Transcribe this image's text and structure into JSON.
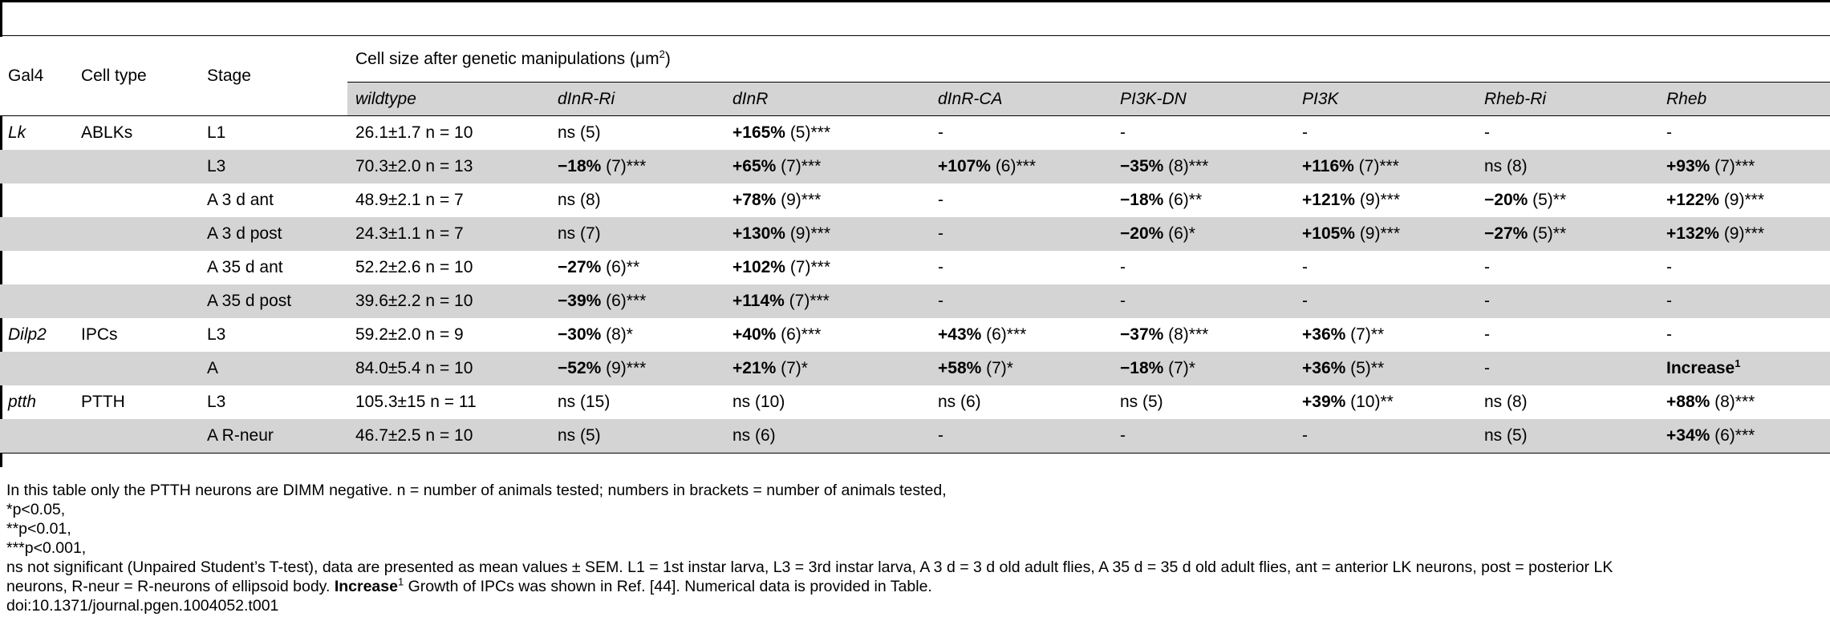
{
  "table": {
    "headers": {
      "gal4": "Gal4",
      "cell_type": "Cell type",
      "stage": "Stage",
      "group_title": "Cell size after genetic manipulations (",
      "group_unit": "μm",
      "group_unit_sup": "2",
      "group_close": ")",
      "columns": [
        "wildtype",
        "dInR-Ri",
        "dInR",
        "dInR-CA",
        "PI3K-DN",
        "PI3K",
        "Rheb-Ri",
        "Rheb"
      ]
    },
    "rows": [
      {
        "gal4": "Lk",
        "cell_type": "ABLKs",
        "stage": "L1",
        "wildtype": "26.1±1.7  n = 10",
        "cells": [
          {
            "pct": "",
            "rest": "ns (5)"
          },
          {
            "pct": "+165%",
            "rest": " (5)***"
          },
          {
            "pct": "",
            "rest": "-"
          },
          {
            "pct": "",
            "rest": "-"
          },
          {
            "pct": "",
            "rest": "-"
          },
          {
            "pct": "",
            "rest": "-"
          },
          {
            "pct": "",
            "rest": "-"
          }
        ]
      },
      {
        "gal4": "",
        "cell_type": "",
        "stage": "L3",
        "wildtype": "70.3±2.0  n = 13",
        "cells": [
          {
            "pct": "−18%",
            "rest": " (7)***"
          },
          {
            "pct": "+65%",
            "rest": " (7)***"
          },
          {
            "pct": "+107%",
            "rest": " (6)***"
          },
          {
            "pct": "−35%",
            "rest": " (8)***"
          },
          {
            "pct": "+116%",
            "rest": " (7)***"
          },
          {
            "pct": "",
            "rest": "ns (8)"
          },
          {
            "pct": "+93%",
            "rest": " (7)***"
          }
        ]
      },
      {
        "gal4": "",
        "cell_type": "",
        "stage": "A 3 d ant",
        "wildtype": "48.9±2.1  n = 7",
        "cells": [
          {
            "pct": "",
            "rest": "ns (8)"
          },
          {
            "pct": "+78%",
            "rest": " (9)***"
          },
          {
            "pct": "",
            "rest": "-"
          },
          {
            "pct": "−18%",
            "rest": " (6)**"
          },
          {
            "pct": "+121%",
            "rest": " (9)***"
          },
          {
            "pct": "−20%",
            "rest": " (5)**"
          },
          {
            "pct": "+122%",
            "rest": " (9)***"
          }
        ]
      },
      {
        "gal4": "",
        "cell_type": "",
        "stage": "A 3 d post",
        "wildtype": "24.3±1.1  n = 7",
        "cells": [
          {
            "pct": "",
            "rest": "ns (7)"
          },
          {
            "pct": "+130%",
            "rest": " (9)***"
          },
          {
            "pct": "",
            "rest": "-"
          },
          {
            "pct": "−20%",
            "rest": " (6)*"
          },
          {
            "pct": "+105%",
            "rest": " (9)***"
          },
          {
            "pct": "−27%",
            "rest": " (5)**"
          },
          {
            "pct": "+132%",
            "rest": " (9)***"
          }
        ]
      },
      {
        "gal4": "",
        "cell_type": "",
        "stage": "A 35 d ant",
        "wildtype": "52.2±2.6  n = 10",
        "cells": [
          {
            "pct": "−27%",
            "rest": " (6)**"
          },
          {
            "pct": "+102%",
            "rest": " (7)***"
          },
          {
            "pct": "",
            "rest": "-"
          },
          {
            "pct": "",
            "rest": "-"
          },
          {
            "pct": "",
            "rest": "-"
          },
          {
            "pct": "",
            "rest": "-"
          },
          {
            "pct": "",
            "rest": "-"
          }
        ]
      },
      {
        "gal4": "",
        "cell_type": "",
        "stage": "A 35 d post",
        "wildtype": "39.6±2.2  n = 10",
        "cells": [
          {
            "pct": "−39%",
            "rest": " (6)***"
          },
          {
            "pct": "+114%",
            "rest": " (7)***"
          },
          {
            "pct": "",
            "rest": "-"
          },
          {
            "pct": "",
            "rest": "-"
          },
          {
            "pct": "",
            "rest": "-"
          },
          {
            "pct": "",
            "rest": "-"
          },
          {
            "pct": "",
            "rest": "-"
          }
        ]
      },
      {
        "gal4": "Dilp2",
        "cell_type": "IPCs",
        "stage": "L3",
        "wildtype": "59.2±2.0  n = 9",
        "cells": [
          {
            "pct": "−30%",
            "rest": " (8)*"
          },
          {
            "pct": "+40%",
            "rest": " (6)***"
          },
          {
            "pct": "+43%",
            "rest": " (6)***"
          },
          {
            "pct": "−37%",
            "rest": " (8)***"
          },
          {
            "pct": "+36%",
            "rest": " (7)**"
          },
          {
            "pct": "",
            "rest": "-"
          },
          {
            "pct": "",
            "rest": "-"
          }
        ]
      },
      {
        "gal4": "",
        "cell_type": "",
        "stage": "A",
        "wildtype": "84.0±5.4  n = 10",
        "cells": [
          {
            "pct": "−52%",
            "rest": " (9)***"
          },
          {
            "pct": "+21%",
            "rest": " (7)*"
          },
          {
            "pct": "+58%",
            "rest": " (7)*"
          },
          {
            "pct": "−18%",
            "rest": " (7)*"
          },
          {
            "pct": "+36%",
            "rest": " (5)**"
          },
          {
            "pct": "",
            "rest": "-"
          },
          {
            "pct": "Increase",
            "rest": "",
            "sup": "1"
          }
        ]
      },
      {
        "gal4": "ptth",
        "cell_type": "PTTH",
        "stage": "L3",
        "wildtype": "105.3±15  n = 11",
        "cells": [
          {
            "pct": "",
            "rest": "ns (15)"
          },
          {
            "pct": "",
            "rest": "ns (10)"
          },
          {
            "pct": "",
            "rest": "ns (6)"
          },
          {
            "pct": "",
            "rest": "ns (5)"
          },
          {
            "pct": "+39%",
            "rest": " (10)**"
          },
          {
            "pct": "",
            "rest": "ns (8)"
          },
          {
            "pct": "+88%",
            "rest": " (8)***"
          }
        ]
      },
      {
        "gal4": "",
        "cell_type": "",
        "stage": "A R-neur",
        "wildtype": "46.7±2.5  n = 10",
        "cells": [
          {
            "pct": "",
            "rest": "ns (5)"
          },
          {
            "pct": "",
            "rest": "ns (6)"
          },
          {
            "pct": "",
            "rest": "-"
          },
          {
            "pct": "",
            "rest": "-"
          },
          {
            "pct": "",
            "rest": "-"
          },
          {
            "pct": "",
            "rest": "ns (5)"
          },
          {
            "pct": "+34%",
            "rest": " (6)***"
          }
        ]
      }
    ]
  },
  "footnotes": {
    "line1": "In this table only the PTTH neurons are DIMM negative. n = number of animals tested; numbers in brackets = number of animals tested,",
    "line2": "*p<0.05,",
    "line3": "**p<0.01,",
    "line4": "***p<0.001,",
    "line5": "ns not significant (Unpaired Student’s T-test), data are presented as mean values ± SEM. L1 = 1st instar larva, L3 = 3rd instar larva, A 3 d = 3 d old adult flies, A 35 d = 35 d old adult flies, ant = anterior LK neurons, post = posterior LK",
    "line6_pre": "neurons, R-neur = R-neurons of ellipsoid body. ",
    "line6_bold": "Increase",
    "line6_sup": "1",
    "line6_post": " Growth of IPCs was shown in Ref. [44]. Numerical data is provided in Table.",
    "doi": "doi:10.1371/journal.pgen.1004052.t001"
  }
}
